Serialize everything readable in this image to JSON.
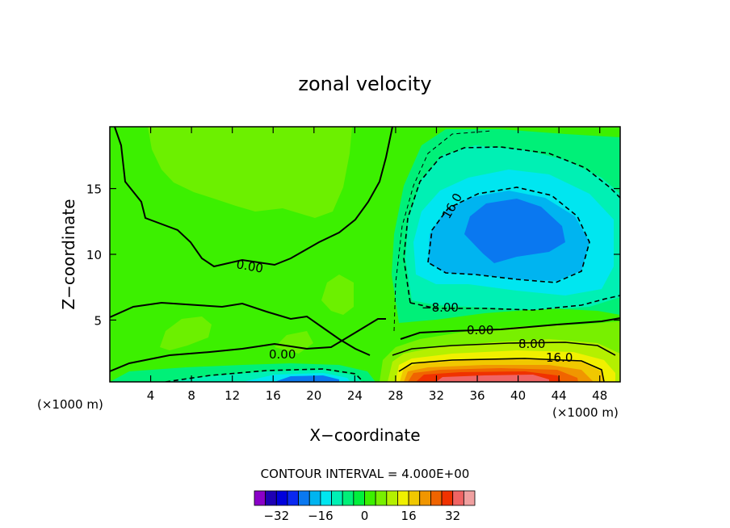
{
  "chart_data": {
    "type": "contour",
    "title": "zonal velocity",
    "xlabel": "X−coordinate",
    "ylabel": "Z−coordinate",
    "x_unit": "(×1000 m)",
    "x_unit_right": "(×1000 m)",
    "xlim": [
      0,
      50
    ],
    "ylim": [
      0.3,
      19.7
    ],
    "x_ticks": [
      "4",
      "8",
      "12",
      "16",
      "20",
      "24",
      "28",
      "32",
      "36",
      "40",
      "44",
      "48"
    ],
    "y_ticks": [
      "5",
      "10",
      "15"
    ],
    "contour_labels": [
      "0.00",
      "0.00",
      "16.0",
      "−8.00",
      "0.00",
      "8.00",
      "16.0"
    ],
    "contour_interval": "CONTOUR INTERVAL = 4.000E+00",
    "colorbar": {
      "levels": [
        -36,
        -32,
        -28,
        -24,
        -20,
        -16,
        -12,
        -8,
        -4,
        0,
        4,
        8,
        12,
        16,
        20,
        24,
        28,
        32,
        36
      ],
      "colors": [
        "#8a00c8",
        "#1e00b4",
        "#0000dc",
        "#0a28f0",
        "#0a78f0",
        "#00b4f0",
        "#00e6f0",
        "#00f0b4",
        "#00f078",
        "#00f03c",
        "#3cf000",
        "#78f000",
        "#b4f000",
        "#f0f000",
        "#f0c800",
        "#f09600",
        "#f06400",
        "#f03200",
        "#f06464",
        "#f0a0a0"
      ],
      "tick_labels": [
        "−32",
        "−16",
        "0",
        "16",
        "32"
      ]
    },
    "field_description_values": {
      "negative_core_center": [
        38.5,
        12
      ],
      "negative_core_min": -20,
      "positive_jet_center": [
        38,
        1
      ],
      "positive_jet_max": 36,
      "bottom_negative_center": [
        19,
        0.5
      ],
      "bottom_negative_min": -16
    }
  }
}
